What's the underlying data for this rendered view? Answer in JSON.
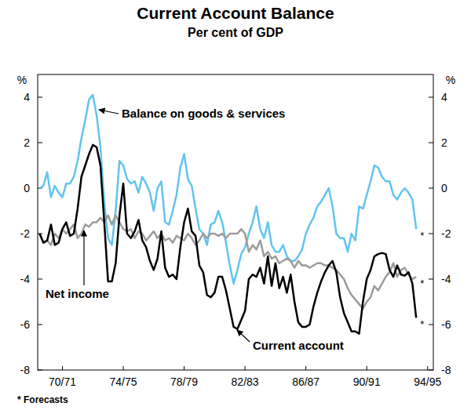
{
  "chart_data": {
    "type": "line",
    "title": "Current Account Balance",
    "subtitle": "Per cent of GDP",
    "y_label": "%",
    "note": "* Forecasts",
    "grid": false,
    "categories": [
      null,
      null,
      null,
      null,
      null,
      null,
      "70/71",
      null,
      null,
      null,
      null,
      null,
      null,
      null,
      null,
      null,
      null,
      null,
      null,
      null,
      null,
      null,
      "74/75",
      null,
      null,
      null,
      null,
      null,
      null,
      null,
      null,
      null,
      null,
      null,
      null,
      null,
      null,
      null,
      "78/79",
      null,
      null,
      null,
      null,
      null,
      null,
      null,
      null,
      null,
      null,
      null,
      null,
      null,
      null,
      null,
      "82/83",
      null,
      null,
      null,
      null,
      null,
      null,
      null,
      null,
      null,
      null,
      null,
      null,
      null,
      null,
      null,
      "86/87",
      null,
      null,
      null,
      null,
      null,
      null,
      null,
      null,
      null,
      null,
      null,
      null,
      null,
      null,
      null,
      "90/91",
      null,
      null,
      null,
      null,
      null,
      null,
      null,
      null,
      null,
      null,
      null,
      null,
      null,
      null,
      null,
      "94/95",
      null
    ],
    "ylim": [
      -8,
      5
    ],
    "yticks": [
      -8,
      -6,
      -4,
      -2,
      0,
      2,
      4
    ],
    "series": [
      {
        "name": "Balance on goods & services",
        "color": "#62c4ef",
        "values": [
          0.0,
          0.1,
          0.7,
          -0.4,
          0.1,
          -0.2,
          -0.4,
          0.2,
          0.2,
          0.5,
          1.2,
          2.2,
          3.0,
          3.9,
          4.1,
          3.2,
          1.8,
          -0.6,
          -2.2,
          -2.5,
          -1.0,
          1.2,
          1.0,
          0.4,
          0.2,
          0.3,
          -0.2,
          0.5,
          0.2,
          -0.2,
          -1.0,
          0.0,
          0.3,
          -1.5,
          -1.6,
          -1.0,
          -0.3,
          0.9,
          1.5,
          0.4,
          0.1,
          -0.9,
          -1.8,
          -2.0,
          -2.5,
          -1.6,
          -1.5,
          -1.0,
          -1.5,
          -2.4,
          -3.4,
          -4.2,
          -3.6,
          -2.9,
          -2.6,
          -2.0,
          -1.5,
          -0.8,
          -1.8,
          -2.2,
          -1.5,
          -2.5,
          -2.8,
          -2.8,
          -2.5,
          -3.0,
          -3.2,
          -3.2,
          -3.0,
          -2.7,
          -2.0,
          -1.6,
          -1.3,
          -0.8,
          -0.6,
          -0.3,
          0.0,
          -0.8,
          -2.0,
          -2.2,
          -2.2,
          -2.8,
          -2.0,
          -2.3,
          -0.8,
          -0.9,
          -0.3,
          0.3,
          1.0,
          0.9,
          0.5,
          0.3,
          0.3,
          -0.3,
          -0.5,
          -0.2,
          0.0,
          -0.2,
          -0.5,
          -1.8,
          null,
          null,
          null,
          null
        ]
      },
      {
        "name": "Net income",
        "color": "#9b9b9b",
        "values": [
          -2.0,
          -2.4,
          -2.3,
          -2.5,
          -2.0,
          -2.2,
          -1.8,
          -2.0,
          -1.8,
          -1.6,
          -2.2,
          -2.0,
          -1.6,
          -1.7,
          -1.5,
          -1.5,
          -1.3,
          -1.5,
          -1.2,
          -1.6,
          -1.2,
          -1.5,
          -1.8,
          -1.9,
          -1.8,
          -2.2,
          -1.9,
          -2.0,
          -2.3,
          -2.1,
          -1.9,
          -2.2,
          -2.0,
          -2.3,
          -2.2,
          -2.4,
          -2.1,
          -2.2,
          -2.3,
          -2.0,
          -2.2,
          -2.5,
          -2.3,
          -2.0,
          -2.2,
          -2.0,
          -2.0,
          -2.1,
          -2.0,
          -2.2,
          -2.0,
          -2.0,
          -2.0,
          -1.8,
          -2.0,
          -2.8,
          -2.5,
          -2.7,
          -2.3,
          -3.0,
          -2.8,
          -3.1,
          -3.0,
          -3.3,
          -3.2,
          -3.1,
          -3.2,
          -3.5,
          -3.2,
          -3.4,
          -3.4,
          -3.5,
          -3.4,
          -3.3,
          -3.3,
          -3.4,
          -3.4,
          -3.5,
          -3.6,
          -3.8,
          -4.0,
          -4.4,
          -4.7,
          -4.9,
          -5.1,
          -5.3,
          -5.0,
          -4.8,
          -4.3,
          -4.5,
          -4.2,
          -3.9,
          -3.7,
          -3.3,
          -3.9,
          -3.6,
          -3.5,
          -3.8,
          -4.0,
          -3.9,
          null,
          null,
          null,
          null
        ]
      },
      {
        "name": "Current account",
        "color": "#000000",
        "values": [
          -2.0,
          -2.4,
          -2.3,
          -1.6,
          -2.5,
          -2.4,
          -1.8,
          -1.5,
          -2.1,
          -2.0,
          -0.9,
          0.5,
          1.0,
          1.5,
          1.9,
          1.8,
          1.0,
          -1.5,
          -4.1,
          -4.1,
          -3.3,
          -1.2,
          0.2,
          -2.0,
          -2.2,
          -1.9,
          -1.4,
          -2.3,
          -2.6,
          -3.2,
          -3.6,
          -3.1,
          -1.9,
          -3.5,
          -3.9,
          -3.8,
          -4.0,
          -2.6,
          -1.5,
          -0.9,
          -1.9,
          -2.1,
          -3.4,
          -3.7,
          -4.7,
          -4.8,
          -4.6,
          -3.9,
          -3.9,
          -4.5,
          -5.3,
          -6.1,
          -6.2,
          -5.8,
          -5.4,
          -4.0,
          -3.8,
          -3.9,
          -3.5,
          -4.2,
          -3.0,
          -4.3,
          -3.3,
          -4.4,
          -3.9,
          -4.6,
          -3.8,
          -5.0,
          -5.9,
          -6.1,
          -6.1,
          -6.0,
          -5.2,
          -4.6,
          -4.1,
          -3.7,
          -3.4,
          -3.2,
          -3.7,
          -4.8,
          -5.5,
          -5.9,
          -6.3,
          -6.3,
          -6.4,
          -5.0,
          -4.0,
          -3.6,
          -3.0,
          -2.9,
          -2.85,
          -2.9,
          -3.6,
          -3.9,
          -3.4,
          -3.8,
          -3.85,
          -3.7,
          -4.2,
          -5.7,
          null,
          null,
          null,
          null
        ]
      }
    ],
    "annotations": [
      {
        "text": "Balance on goods & services",
        "series": 0
      },
      {
        "text": "Net income",
        "series": 1
      },
      {
        "text": "Current account",
        "series": 2
      },
      {
        "text": "*",
        "series": 0
      },
      {
        "text": "*",
        "series": 1
      },
      {
        "text": "*",
        "series": 2
      }
    ]
  }
}
